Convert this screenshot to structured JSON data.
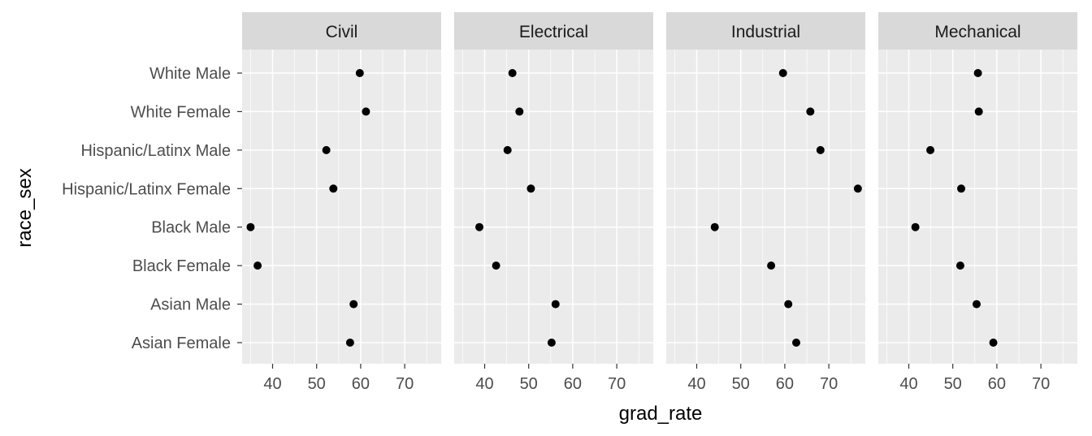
{
  "chart_data": {
    "type": "scatter",
    "xlabel": "grad_rate",
    "ylabel": "race_sex",
    "xlim": [
      33,
      78
    ],
    "x_ticks": [
      40,
      50,
      60,
      70
    ],
    "x_tick_labels": [
      "40",
      "50",
      "60",
      "70"
    ],
    "categories": [
      "White Male",
      "White Female",
      "Hispanic/Latinx Male",
      "Hispanic/Latinx Female",
      "Black Male",
      "Black Female",
      "Asian Male",
      "Asian Female"
    ],
    "facets": [
      {
        "name": "Civil",
        "values": [
          59.8,
          61.2,
          52.2,
          53.8,
          35.0,
          36.6,
          58.4,
          57.6
        ]
      },
      {
        "name": "Electrical",
        "values": [
          46.3,
          47.9,
          45.2,
          50.5,
          38.8,
          42.6,
          56.1,
          55.2
        ]
      },
      {
        "name": "Industrial",
        "values": [
          59.6,
          65.8,
          68.1,
          76.6,
          44.1,
          56.9,
          60.8,
          62.6
        ]
      },
      {
        "name": "Mechanical",
        "values": [
          55.7,
          55.9,
          44.9,
          51.9,
          41.5,
          51.7,
          55.4,
          59.2
        ]
      }
    ],
    "grid": true,
    "legend": "none",
    "colors": {
      "panel_bg": "#ebebeb",
      "strip_bg": "#d9d9d9",
      "grid": "#ffffff",
      "point": "#000000"
    }
  }
}
